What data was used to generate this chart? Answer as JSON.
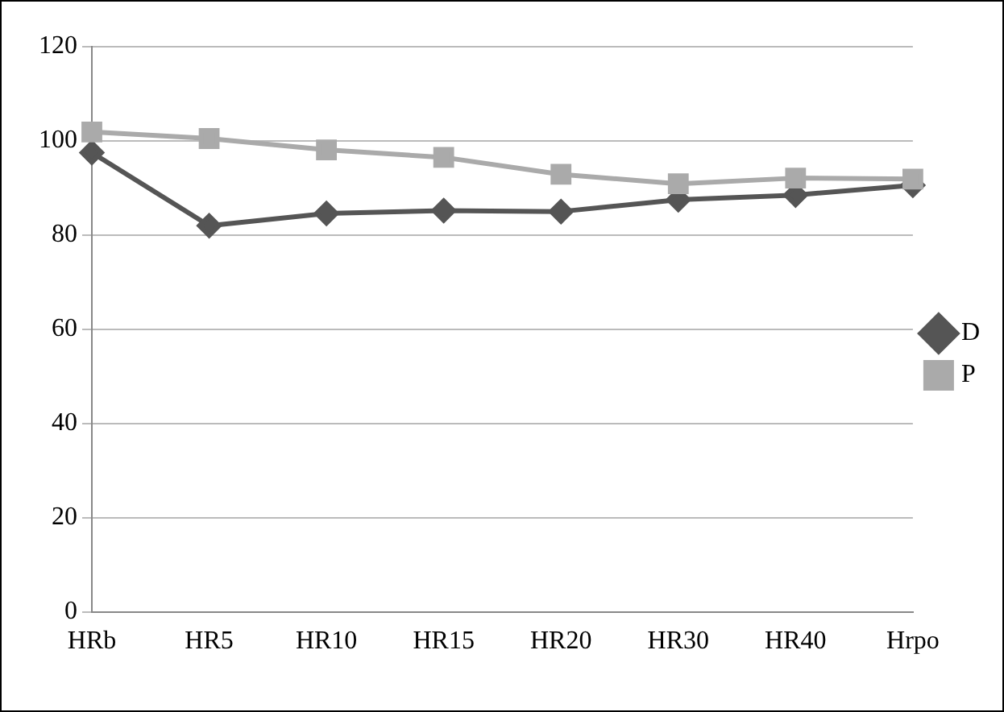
{
  "chart_data": {
    "type": "line",
    "categories": [
      "HRb",
      "HR5",
      "HR10",
      "HR15",
      "HR20",
      "HR30",
      "HR40",
      "Hrpo"
    ],
    "series": [
      {
        "name": "D",
        "color": "#555555",
        "marker": "diamond",
        "values": [
          97.5,
          82,
          84.6,
          85.2,
          85,
          87.5,
          88.5,
          90.6
        ]
      },
      {
        "name": "P",
        "color": "#aaaaaa",
        "marker": "square",
        "values": [
          101.9,
          100.5,
          98.1,
          96.5,
          92.9,
          90.9,
          92.1,
          91.9
        ]
      }
    ],
    "ylim": [
      0,
      120
    ],
    "yticks": [
      0,
      20,
      40,
      60,
      80,
      100,
      120
    ],
    "grid": "y",
    "legend": "right"
  }
}
